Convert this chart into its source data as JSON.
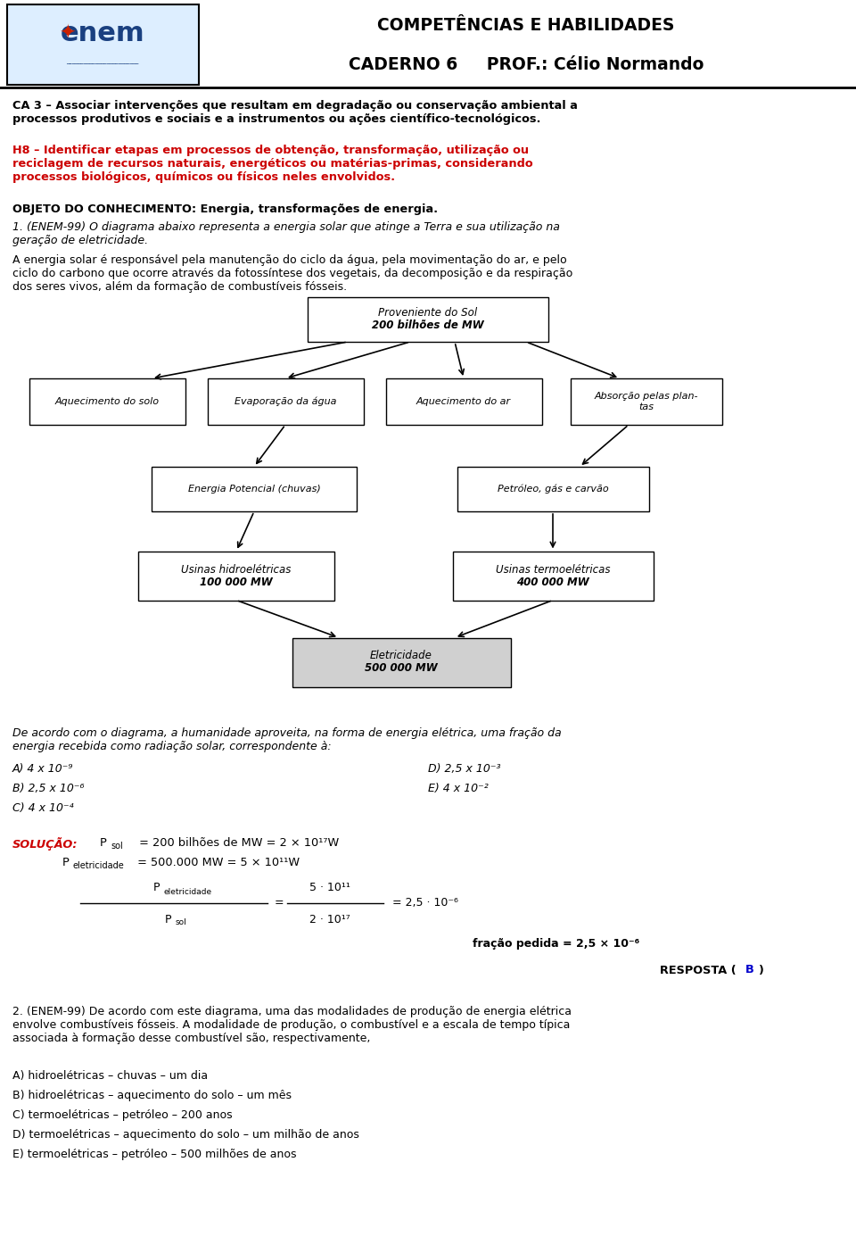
{
  "title1": "COMPETÊNCIAS E HABILIDADES",
  "title2": "CADERNO 6     PROF.: Célio Normando",
  "ca3_text": "CA 3 – Associar intervenções que resultam em degradação ou conservação ambiental a\nprocessos produtivos e sociais e a instrumentos ou ações científico-tecnológicos.",
  "h8_text": "H8 – Identificar etapas em processos de obtenção, transformação, utilização ou\nreciclagem de recursos naturais, energéticos ou matérias-primas, considerando\nprocessos biológicos, químicos ou físicos neles envolvidos.",
  "objeto_text": "OBJETO DO CONHECIMENTO: Energia, transformações de energia.",
  "q1_intro": "1. (ENEM-99) O diagrama abaixo representa a energia solar que atinge a Terra e sua utilização na\ngeração de eletricidade.",
  "q1_body": "A energia solar é responsável pela manutenção do ciclo da água, pela movimentação do ar, e pelo\nciclo do carbono que ocorre através da fotossíntese dos vegetais, da decomposição e da respiração\ndos seres vivos, além da formação de combustíveis fósseis.",
  "q1_question": "De acordo com o diagrama, a humanidade aproveita, na forma de energia elétrica, uma fração da\nenergia recebida como radiação solar, correspondente à:",
  "options_left": [
    "A) 4 x 10⁻⁹",
    "B) 2,5 x 10⁻⁶",
    "C) 4 x 10⁻⁴"
  ],
  "options_right": [
    "D) 2,5 x 10⁻³",
    "E) 4 x 10⁻²"
  ],
  "solucao_label": "SOLUÇÃO:",
  "fracao_pedida": "fração pedida = 2,5 × 10⁻⁶",
  "resposta_pre": "RESPOSTA (",
  "resposta_b": "B",
  "resposta_post": ")",
  "q2_intro": "2. (ENEM-99) De acordo com este diagrama, uma das modalidades de produção de energia elétrica\nenvolve combustíveis fósseis. A modalidade de produção, o combustível e a escala de tempo típica\nassociada à formação desse combustível são, respectivamente,",
  "q2_options": [
    "A) hidroelétricas – chuvas – um dia",
    "B) hidroelétricas – aquecimento do solo – um mês",
    "C) termoelétricas – petróleo – 200 anos",
    "D) termoelétricas – aquecimento do solo – um milhão de anos",
    "E) termoelétricas – petróleo – 500 milhões de anos"
  ],
  "bg_color": "#ffffff",
  "text_color": "#000000",
  "red_color": "#cc0000",
  "blue_color": "#0000cc"
}
